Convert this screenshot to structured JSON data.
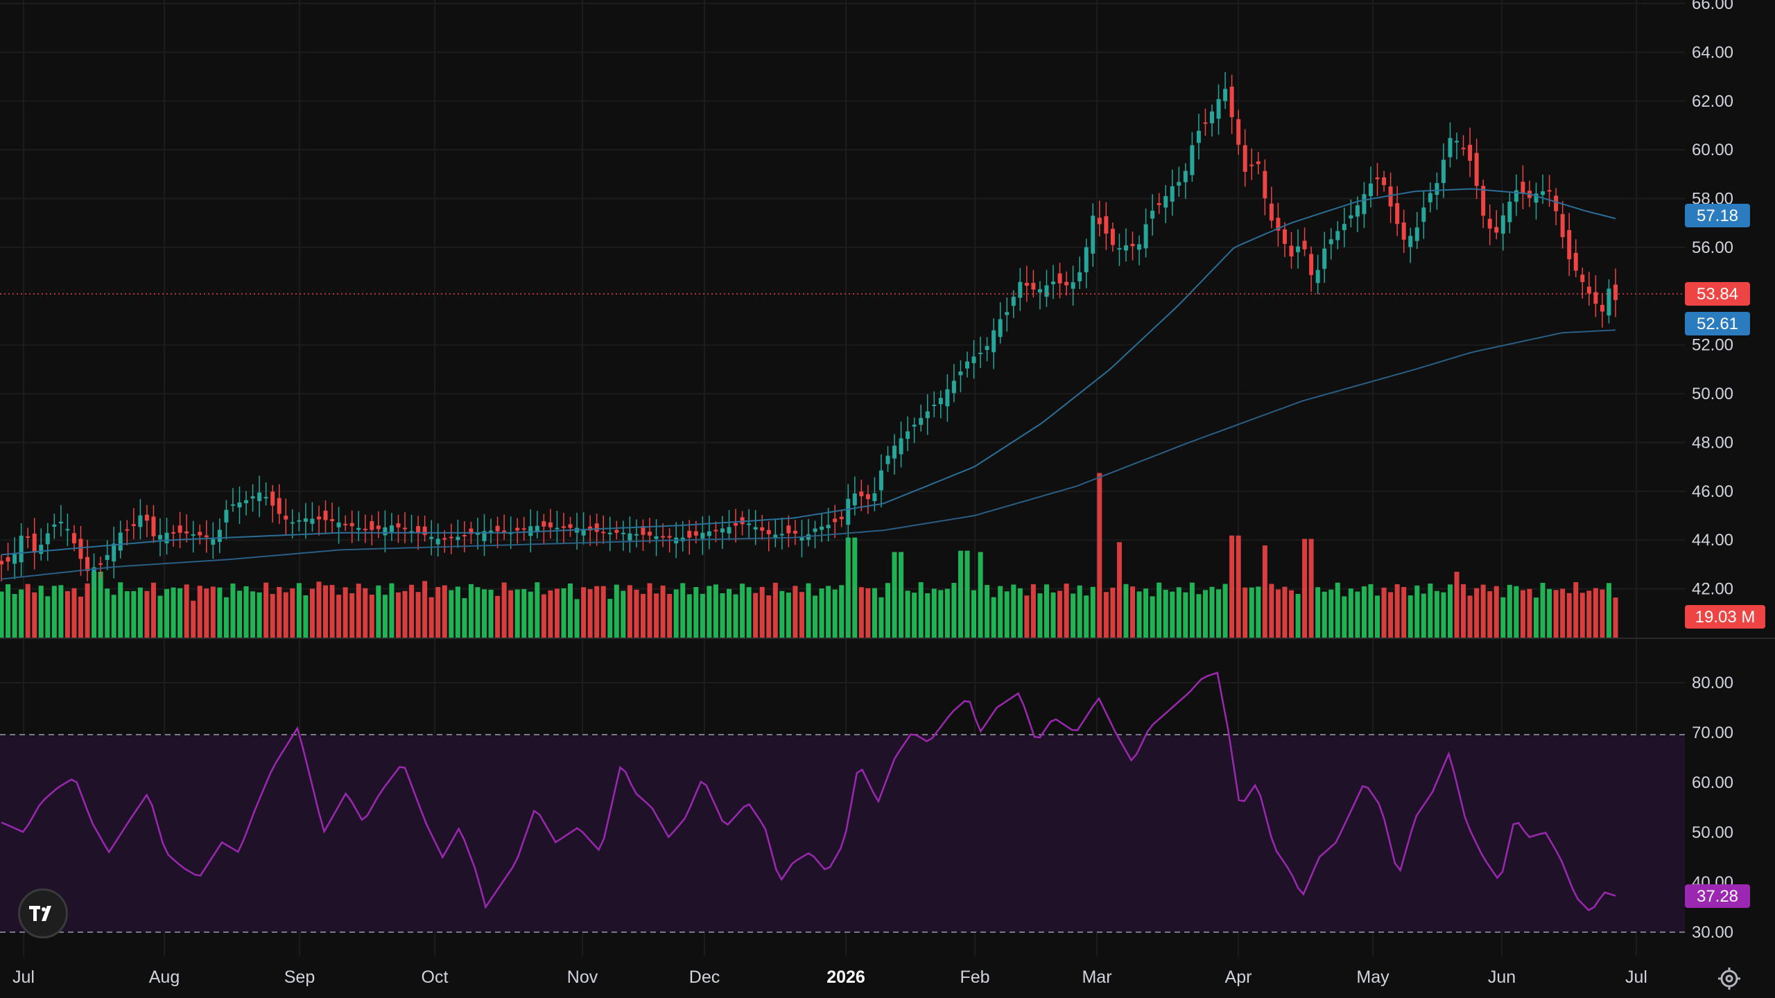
{
  "colors": {
    "background": "#0f0f0f",
    "grid": "#1c1c1c",
    "axis_text": "#d1d4dc",
    "up": "#26a69a",
    "up_bright": "#22c55e",
    "down": "#ef4444",
    "sma50": "#2a6f97",
    "sma200": "#2a5f85",
    "ma_label": "#2b7bbf",
    "rsi_line": "#9c27b0",
    "rsi_band": "#1f1228",
    "rsi_label": "#9c27b0"
  },
  "time_axis": {
    "labels": [
      "Jul",
      "Aug",
      "Sep",
      "Oct",
      "Nov",
      "Dec",
      "2026",
      "Feb",
      "Mar",
      "Apr",
      "May",
      "Jun",
      "Jul"
    ],
    "bold_label": "2026"
  },
  "price_axis": {
    "ticks": [
      "66.00",
      "64.00",
      "62.00",
      "60.00",
      "58.00",
      "56.00",
      "52.00",
      "50.00",
      "48.00",
      "46.00",
      "44.00",
      "42.00"
    ],
    "min": 40.0,
    "max": 66.0
  },
  "rsi_axis": {
    "ticks": [
      "80.00",
      "70.00",
      "60.00",
      "50.00",
      "40.00",
      "30.00"
    ],
    "upper_band": 70,
    "lower_band": 30
  },
  "labels": {
    "sma50_value": "57.18",
    "last_price": "53.84",
    "sma200_value": "52.61",
    "volume_value": "19.03 M",
    "rsi_value": "37.28"
  },
  "chart_data": {
    "type": "candlestick",
    "series_points": 245,
    "close_keypoints": [
      [
        0,
        43.0
      ],
      [
        10,
        43.2
      ],
      [
        20,
        44.5
      ],
      [
        30,
        43.4
      ],
      [
        45,
        44.6
      ],
      [
        55,
        44.8
      ],
      [
        65,
        43.8
      ],
      [
        75,
        42.7
      ],
      [
        90,
        43.1
      ],
      [
        105,
        44.3
      ],
      [
        118,
        44.6
      ],
      [
        125,
        45.2
      ],
      [
        135,
        44.1
      ],
      [
        145,
        44.3
      ],
      [
        160,
        44.3
      ],
      [
        175,
        44.2
      ],
      [
        190,
        44.0
      ],
      [
        200,
        45.4
      ],
      [
        215,
        45.6
      ],
      [
        230,
        46.0
      ],
      [
        245,
        45.1
      ],
      [
        255,
        44.7
      ],
      [
        270,
        44.9
      ],
      [
        290,
        44.8
      ],
      [
        300,
        44.7
      ],
      [
        315,
        44.5
      ],
      [
        330,
        44.4
      ],
      [
        345,
        44.6
      ],
      [
        360,
        44.4
      ],
      [
        375,
        44.2
      ],
      [
        390,
        44.0
      ],
      [
        410,
        44.2
      ],
      [
        430,
        44.4
      ],
      [
        450,
        44.3
      ],
      [
        470,
        44.6
      ],
      [
        490,
        44.5
      ],
      [
        510,
        44.5
      ],
      [
        530,
        44.3
      ],
      [
        550,
        44.3
      ],
      [
        570,
        44.2
      ],
      [
        590,
        44.1
      ],
      [
        610,
        44.1
      ],
      [
        620,
        44.3
      ],
      [
        640,
        44.5
      ],
      [
        660,
        44.7
      ],
      [
        680,
        44.2
      ],
      [
        700,
        44.3
      ],
      [
        710,
        44.1
      ],
      [
        720,
        44.5
      ],
      [
        730,
        44.6
      ],
      [
        740,
        44.8
      ],
      [
        745,
        44.9
      ],
      [
        750,
        46.0
      ],
      [
        760,
        45.8
      ],
      [
        770,
        45.6
      ],
      [
        780,
        47.2
      ],
      [
        790,
        47.9
      ],
      [
        800,
        48.4
      ],
      [
        815,
        49.1
      ],
      [
        830,
        49.8
      ],
      [
        845,
        50.7
      ],
      [
        855,
        51.4
      ],
      [
        870,
        51.8
      ],
      [
        880,
        52.9
      ],
      [
        890,
        53.4
      ],
      [
        900,
        54.6
      ],
      [
        915,
        54.2
      ],
      [
        930,
        54.6
      ],
      [
        945,
        54.4
      ],
      [
        955,
        55.1
      ],
      [
        965,
        57.3
      ],
      [
        975,
        56.7
      ],
      [
        985,
        55.9
      ],
      [
        995,
        56.1
      ],
      [
        1005,
        56.0
      ],
      [
        1015,
        57.4
      ],
      [
        1025,
        57.8
      ],
      [
        1035,
        58.5
      ],
      [
        1045,
        58.8
      ],
      [
        1055,
        60.6
      ],
      [
        1065,
        61.1
      ],
      [
        1075,
        62.0
      ],
      [
        1082,
        62.5
      ],
      [
        1090,
        60.9
      ],
      [
        1100,
        59.0
      ],
      [
        1110,
        59.7
      ],
      [
        1120,
        57.3
      ],
      [
        1130,
        56.6
      ],
      [
        1140,
        55.6
      ],
      [
        1150,
        56.3
      ],
      [
        1160,
        54.5
      ],
      [
        1170,
        56.0
      ],
      [
        1180,
        56.6
      ],
      [
        1190,
        57.1
      ],
      [
        1200,
        57.8
      ],
      [
        1210,
        58.6
      ],
      [
        1220,
        58.9
      ],
      [
        1230,
        57.4
      ],
      [
        1240,
        56.3
      ],
      [
        1250,
        56.6
      ],
      [
        1260,
        58.0
      ],
      [
        1270,
        58.7
      ],
      [
        1280,
        60.5
      ],
      [
        1290,
        60.3
      ],
      [
        1300,
        59.4
      ],
      [
        1310,
        57.3
      ],
      [
        1320,
        56.4
      ],
      [
        1330,
        57.6
      ],
      [
        1340,
        58.4
      ],
      [
        1350,
        58.0
      ],
      [
        1360,
        58.3
      ],
      [
        1370,
        58.3
      ],
      [
        1378,
        56.8
      ],
      [
        1385,
        55.6
      ],
      [
        1395,
        54.8
      ],
      [
        1405,
        54.0
      ],
      [
        1415,
        53.3
      ],
      [
        1420,
        54.4
      ],
      [
        1427,
        53.84
      ]
    ],
    "sma50_keypoints": [
      [
        0,
        43.4
      ],
      [
        150,
        44.0
      ],
      [
        300,
        44.3
      ],
      [
        450,
        44.3
      ],
      [
        600,
        44.6
      ],
      [
        700,
        44.9
      ],
      [
        780,
        45.5
      ],
      [
        860,
        47.0
      ],
      [
        920,
        48.8
      ],
      [
        980,
        51.0
      ],
      [
        1040,
        53.6
      ],
      [
        1090,
        56.0
      ],
      [
        1140,
        57.0
      ],
      [
        1200,
        57.9
      ],
      [
        1250,
        58.3
      ],
      [
        1300,
        58.4
      ],
      [
        1350,
        58.2
      ],
      [
        1400,
        57.5
      ],
      [
        1427,
        57.18
      ]
    ],
    "sma200_keypoints": [
      [
        0,
        42.4
      ],
      [
        100,
        42.9
      ],
      [
        200,
        43.2
      ],
      [
        300,
        43.6
      ],
      [
        450,
        43.8
      ],
      [
        600,
        44.0
      ],
      [
        700,
        44.1
      ],
      [
        780,
        44.4
      ],
      [
        860,
        45.0
      ],
      [
        950,
        46.2
      ],
      [
        1050,
        48.0
      ],
      [
        1150,
        49.7
      ],
      [
        1250,
        51.0
      ],
      [
        1300,
        51.7
      ],
      [
        1380,
        52.5
      ],
      [
        1427,
        52.61
      ]
    ],
    "volume_peaks": [
      [
        0,
        70
      ],
      [
        85,
        100
      ],
      [
        280,
        85
      ],
      [
        375,
        86
      ],
      [
        475,
        80
      ],
      [
        685,
        80
      ],
      [
        752,
        152
      ],
      [
        792,
        130
      ],
      [
        852,
        132
      ],
      [
        866,
        130
      ],
      [
        970,
        250
      ],
      [
        988,
        145
      ],
      [
        1090,
        155
      ],
      [
        1116,
        140
      ],
      [
        1155,
        150
      ],
      [
        1285,
        100
      ],
      [
        1427,
        30
      ]
    ],
    "rsi_keypoints": [
      [
        0,
        52
      ],
      [
        20,
        50
      ],
      [
        35,
        56
      ],
      [
        50,
        59
      ],
      [
        65,
        61
      ],
      [
        80,
        52
      ],
      [
        95,
        46
      ],
      [
        115,
        53
      ],
      [
        130,
        58
      ],
      [
        145,
        46
      ],
      [
        160,
        43
      ],
      [
        175,
        41
      ],
      [
        195,
        48
      ],
      [
        210,
        46
      ],
      [
        225,
        55
      ],
      [
        240,
        63
      ],
      [
        262,
        71
      ],
      [
        272,
        62
      ],
      [
        285,
        50
      ],
      [
        305,
        58
      ],
      [
        320,
        52
      ],
      [
        335,
        58
      ],
      [
        355,
        64
      ],
      [
        375,
        52
      ],
      [
        390,
        45
      ],
      [
        405,
        51
      ],
      [
        420,
        42
      ],
      [
        428,
        35
      ],
      [
        440,
        39
      ],
      [
        455,
        44
      ],
      [
        472,
        55
      ],
      [
        490,
        48
      ],
      [
        510,
        51
      ],
      [
        530,
        46
      ],
      [
        548,
        64
      ],
      [
        560,
        58
      ],
      [
        575,
        55
      ],
      [
        590,
        49
      ],
      [
        605,
        53
      ],
      [
        620,
        61
      ],
      [
        640,
        51
      ],
      [
        660,
        56
      ],
      [
        675,
        51
      ],
      [
        688,
        40
      ],
      [
        700,
        44
      ],
      [
        715,
        46
      ],
      [
        730,
        42
      ],
      [
        745,
        48
      ],
      [
        758,
        64
      ],
      [
        775,
        56
      ],
      [
        790,
        65
      ],
      [
        805,
        70
      ],
      [
        820,
        68
      ],
      [
        840,
        74
      ],
      [
        855,
        77
      ],
      [
        865,
        70
      ],
      [
        880,
        75
      ],
      [
        900,
        78
      ],
      [
        915,
        68
      ],
      [
        930,
        73
      ],
      [
        950,
        70
      ],
      [
        970,
        77
      ],
      [
        985,
        70
      ],
      [
        1000,
        64
      ],
      [
        1015,
        71
      ],
      [
        1030,
        74
      ],
      [
        1050,
        78
      ],
      [
        1062,
        81
      ],
      [
        1075,
        82
      ],
      [
        1085,
        70
      ],
      [
        1095,
        55
      ],
      [
        1110,
        60
      ],
      [
        1125,
        47
      ],
      [
        1140,
        42
      ],
      [
        1150,
        37
      ],
      [
        1165,
        45
      ],
      [
        1180,
        48
      ],
      [
        1205,
        60
      ],
      [
        1220,
        55
      ],
      [
        1235,
        41
      ],
      [
        1250,
        53
      ],
      [
        1265,
        58
      ],
      [
        1280,
        66
      ],
      [
        1295,
        52
      ],
      [
        1310,
        45
      ],
      [
        1325,
        40
      ],
      [
        1338,
        53
      ],
      [
        1350,
        49
      ],
      [
        1365,
        50
      ],
      [
        1378,
        45
      ],
      [
        1392,
        37
      ],
      [
        1405,
        34
      ],
      [
        1417,
        38
      ],
      [
        1427,
        37.28
      ]
    ]
  }
}
